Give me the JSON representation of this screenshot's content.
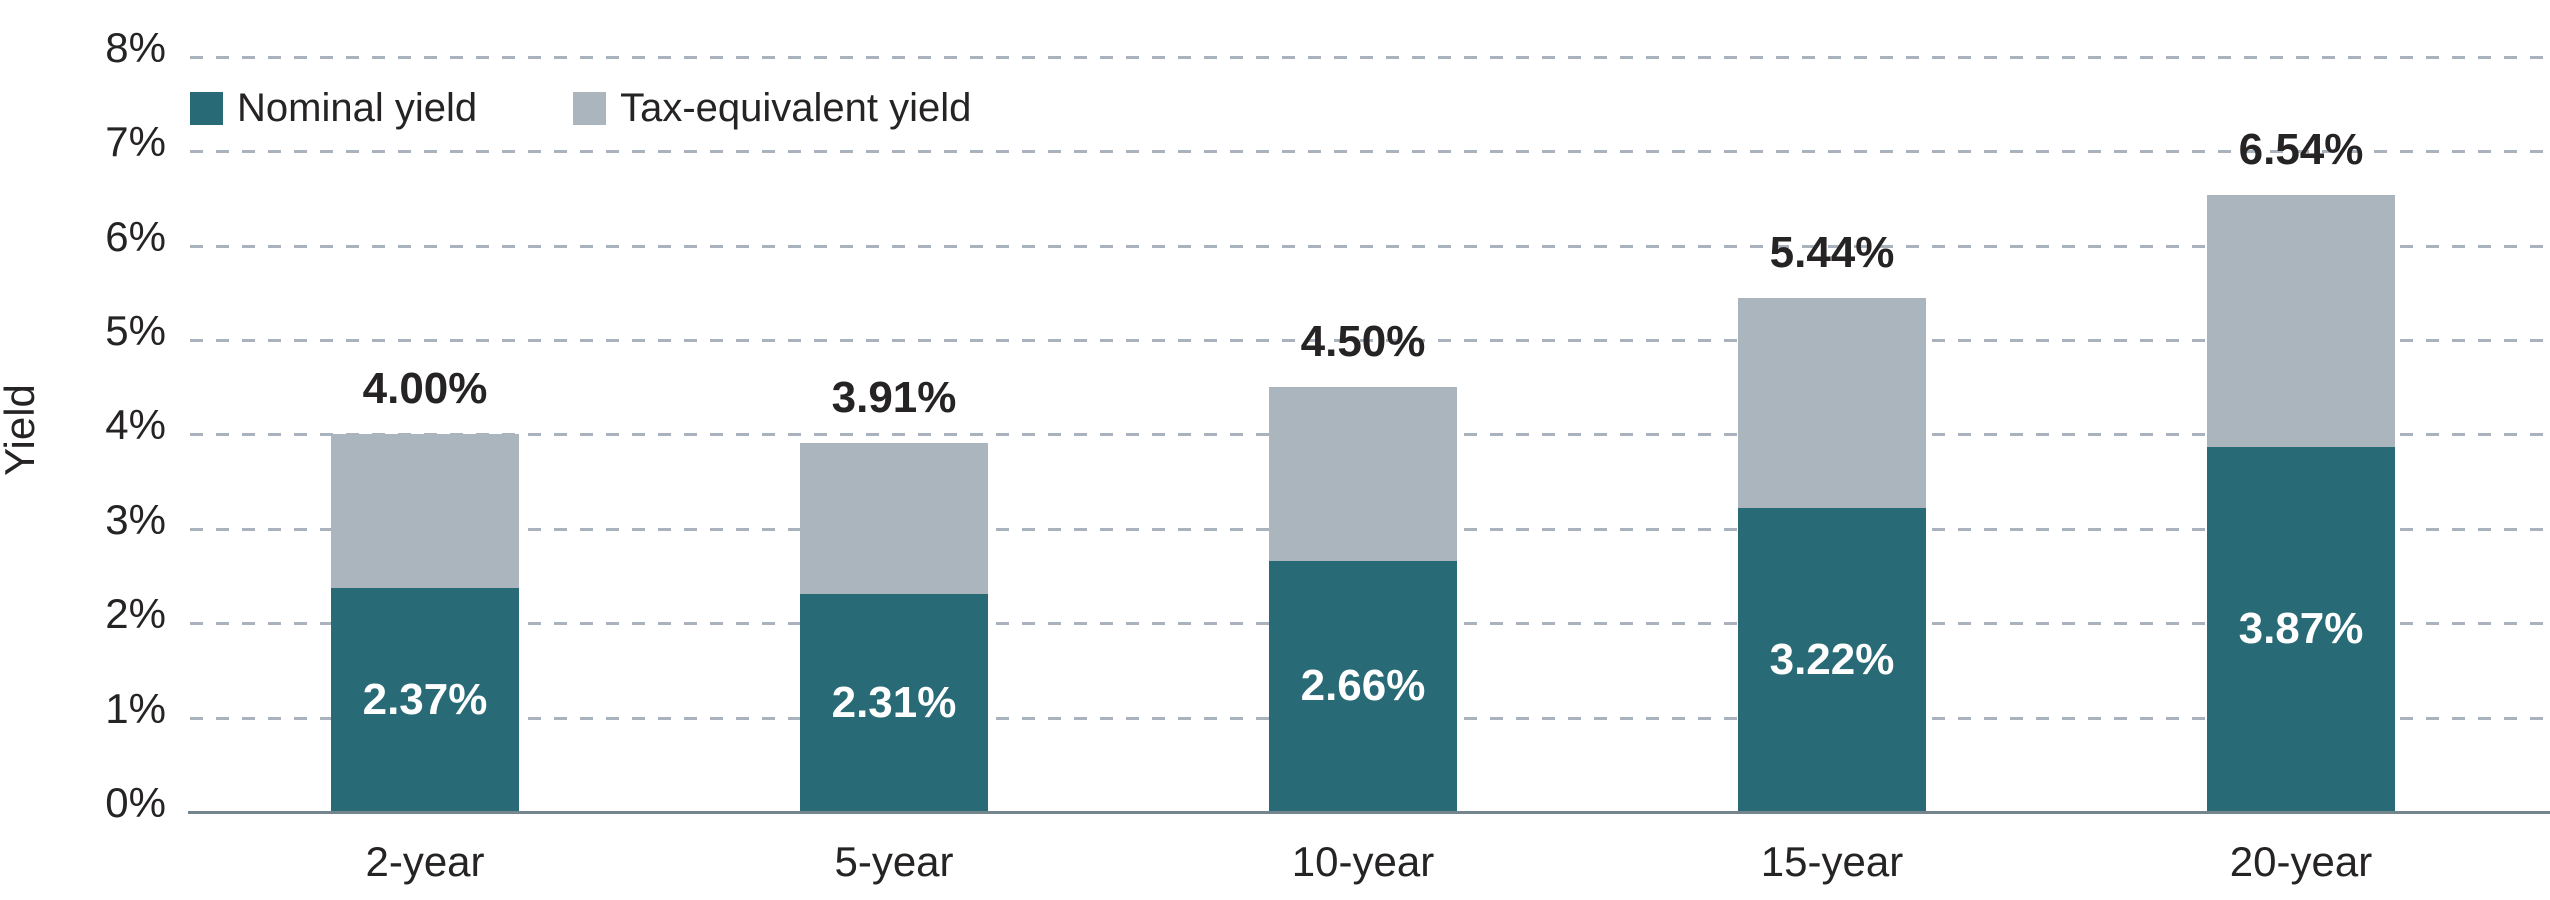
{
  "chart_data": {
    "type": "bar",
    "stacked": true,
    "title": "",
    "ylabel": "Yield",
    "ylim": [
      0,
      8
    ],
    "y_tick_step": 1,
    "y_tick_suffix": "%",
    "grid": "horizontal-dashed",
    "legend_position": "top-left-inside",
    "categories": [
      "2-year",
      "5-year",
      "10-year",
      "15-year",
      "20-year"
    ],
    "series": [
      {
        "name": "Nominal yield",
        "color": "#286a75",
        "values": [
          2.37,
          2.31,
          2.66,
          3.22,
          3.87
        ],
        "value_labels": [
          "2.37%",
          "2.31%",
          "2.66%",
          "3.22%",
          "3.87%"
        ]
      },
      {
        "name": "Tax-equivalent yield",
        "color": "#abb5bd",
        "values": [
          1.63,
          1.6,
          1.84,
          2.22,
          2.67
        ]
      }
    ],
    "stack_totals": [
      4.0,
      3.91,
      4.5,
      5.44,
      6.54
    ],
    "stack_total_labels": [
      "4.00%",
      "3.91%",
      "4.50%",
      "5.44%",
      "6.54%"
    ]
  },
  "colors": {
    "nominal": "#286a75",
    "tax_equivalent": "#abb5bd",
    "gridline": "#aab3bd",
    "axis_line": "#74858d",
    "text": "#262324",
    "bar_value_text": "#ffffff",
    "background": "#ffffff"
  }
}
